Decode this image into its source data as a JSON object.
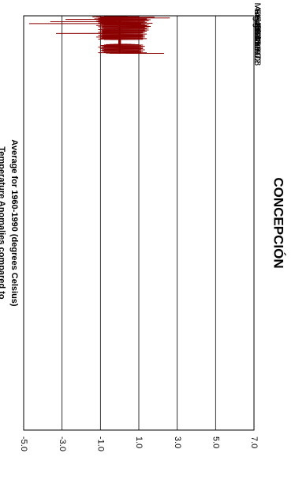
{
  "chart_data": {
    "type": "line",
    "title": "CONCEPCIÓN",
    "ylabel_line1": "Temperature Anomalies compared to",
    "ylabel_line2": "Average for 1960-1990 (degrees Celsius)",
    "ylim": [
      -5.0,
      7.0
    ],
    "y_ticks": [
      7.0,
      5.0,
      3.0,
      1.0,
      -1.0,
      -3.0,
      -5.0
    ],
    "y_tick_labels": [
      "7.0",
      "5.0",
      "3.0",
      "1.0",
      "-1.0",
      "-3.0",
      "-5.0"
    ],
    "x_tick_labels": [
      "Mar-48",
      "Aug-53",
      "Feb-59",
      "Aug-64",
      "Feb-70",
      "Jul-75",
      "Jan-81",
      "Jul-86",
      "Dec-91",
      "Jun-97",
      "Dec-02",
      "Jun-08"
    ],
    "x_range": [
      "1948-03",
      "2010-01"
    ],
    "grid": "horizontal",
    "orientation": "rotated-90-clockwise",
    "series": [
      {
        "color": "#8b0000",
        "description": "monthly temperature anomaly",
        "segments": [
          {
            "start": "1948-03",
            "end": "1986-12",
            "x_unit": "month",
            "values": [
              -0.2,
              0.4,
              -0.8,
              1.0,
              -0.5,
              0.3,
              -1.4,
              0.6,
              -0.3,
              0.9,
              -0.7,
              0.2,
              -1.2,
              0.5,
              1.8,
              -0.4,
              0.7,
              -0.9,
              0.1,
              1.3,
              -0.6,
              0.4,
              -0.2,
              0.8,
              -1.0,
              0.3,
              0.6,
              -0.5,
              1.1,
              -0.8,
              0.2,
              0.9,
              -0.3,
              2.6,
              -0.7,
              0.4,
              1.5,
              -0.2,
              0.8,
              -1.1,
              0.5,
              0.2,
              -0.6,
              1.0,
              -0.4,
              0.7,
              -0.9,
              0.3,
              1.2,
              -0.5,
              0.6,
              -0.2,
              0.9,
              -1.3,
              0.4,
              0.1,
              -0.7,
              1.4,
              -0.3,
              0.5,
              -0.8,
              0.2,
              1.0,
              -0.6,
              0.3,
              0.7,
              -0.4,
              -2.8,
              0.6,
              -0.2,
              0.9,
              -0.9,
              0.4,
              1.6,
              -0.5,
              0.2,
              -0.3,
              0.8,
              -1.0,
              0.5,
              0.1,
              -0.6,
              1.2,
              -0.2,
              0.6,
              -0.8,
              0.3,
              0.9,
              -0.4,
              0.2,
              -1.1,
              0.7,
              -0.3,
              1.5,
              -0.6,
              0.4,
              0.1,
              -0.9,
              0.8,
              -0.2,
              0.5,
              -0.7,
              1.0,
              -0.3,
              0.3,
              0.6,
              -1.2,
              0.4,
              -0.5,
              0.9,
              -0.1,
              0.7,
              -0.8,
              0.2,
              1.3,
              -0.4,
              0.5,
              -0.6,
              0.3,
              0.8,
              -3.6,
              0.6,
              -0.2,
              1.1,
              -0.7,
              0.4,
              0.2,
              -0.5,
              0.9,
              -0.3,
              0.6,
              -1.0,
              0.3,
              1.4,
              -0.4,
              0.2,
              -0.8,
              0.7,
              -0.2,
              0.5,
              1.0,
              -0.6,
              0.3,
              -0.3,
              0.8,
              -1.1,
              0.4,
              0.1,
              -0.7,
              1.2,
              -0.2,
              0.6,
              -0.5,
              0.3,
              1.7,
              -0.9,
              0.4,
              -0.3,
              0.9,
              -0.6,
              0.2,
              0.7,
              -0.4,
              -4.7,
              0.5,
              -0.8,
              0.3,
              1.1,
              -0.2,
              0.6,
              -0.7,
              0.4,
              0.2,
              -0.5,
              1.0,
              -0.3,
              0.8,
              -0.9,
              0.5,
              1.3,
              -0.4,
              0.2,
              -0.6,
              0.7,
              -0.2,
              0.9,
              -1.0,
              0.4,
              0.3,
              -0.5,
              1.2,
              -0.3,
              0.6,
              -0.8,
              0.2,
              1.5,
              -0.4,
              0.5,
              -0.2,
              0.8,
              -0.7,
              0.3,
              1.0,
              -0.5,
              0.6,
              -0.3,
              0.4,
              -1.2,
              0.9,
              -0.2,
              0.7,
              -0.6,
              0.3,
              1.4,
              -0.4,
              0.5,
              -0.8,
              0.2,
              1.1,
              -0.3,
              0.6,
              -0.5,
              0.4,
              0.9,
              -0.9,
              0.2,
              -0.4,
              0.8,
              -0.2,
              1.6,
              -0.6,
              0.3,
              -0.7,
              0.5,
              1.0,
              -0.3,
              0.4,
              -1.1,
              0.7,
              -0.2,
              0.9,
              -0.5,
              0.3,
              1.3,
              -0.6,
              0.2,
              -0.3,
              0.8,
              -0.8,
              0.5,
              1.1,
              -0.4,
              0.6,
              -0.2,
              0.4,
              -0.9,
              1.2,
              -0.3,
              0.7,
              -0.6,
              0.2,
              1.5,
              -0.5,
              0.4,
              -0.7,
              0.3,
              1.0,
              -0.2,
              0.8,
              -1.0,
              0.5,
              0.9,
              -0.4,
              0.6,
              -0.3,
              1.2,
              -0.6,
              0.2,
              0.7,
              -0.8,
              0.4,
              1.4,
              -0.3,
              0.5,
              -0.5,
              0.8,
              -0.2,
              1.1,
              -0.7,
              0.3,
              0.6,
              -0.4,
              1.3,
              -0.9,
              0.2,
              0.9,
              -0.3,
              0.5,
              -0.6,
              1.0,
              -0.2,
              0.7,
              -1.1,
              0.4,
              1.2,
              -0.5,
              0.3,
              -0.4,
              0.8,
              -0.8,
              0.6,
              1.5,
              -0.3,
              0.2,
              -0.6,
              0.9,
              -0.2,
              0.4,
              -0.9,
              1.1,
              -0.4,
              0.7,
              -0.3,
              0.5,
              1.3,
              -0.7,
              0.2,
              0.8,
              -0.5,
              0.6,
              -1.0,
              0.3,
              1.0,
              -0.2,
              0.4,
              -0.6,
              0.9,
              -0.3,
              1.4,
              -0.8,
              0.5,
              0.2,
              -0.4,
              0.7,
              -0.2,
              1.1,
              -0.9,
              0.3,
              0.6,
              -0.5,
              1.2,
              -0.3,
              0.4,
              -0.7,
              0.8,
              -0.2,
              0.5,
              1.0,
              -0.6,
              0.3,
              -0.4,
              0.9,
              -1.1,
              0.6,
              0.2,
              -0.3,
              1.3,
              -0.5,
              0.4,
              -0.8,
              0.7,
              -0.2,
              1.0,
              -0.6,
              0.3,
              0.5,
              -0.4,
              0.8,
              -0.3,
              1.2,
              -0.9,
              0.2,
              0.6,
              -0.5,
              0.4,
              -0.7,
              1.1,
              -0.2,
              0.3,
              0.9,
              -0.4,
              -3.3,
              0.5,
              -0.6,
              0.7,
              -0.3,
              1.0,
              -0.8,
              0.2,
              0.4,
              -0.5,
              0.9,
              -0.2,
              0.6,
              -1.0,
              0.3,
              1.4,
              -0.4,
              0.5,
              -0.7,
              0.8,
              -0.3,
              0.2,
              1.1,
              -0.6,
              0.4,
              -0.2,
              0.7,
              -0.9,
              0.3,
              1.0,
              -0.5,
              0.6,
              -0.4,
              0.2,
              -0.8,
              1.2,
              -0.3,
              0.5,
              -0.6,
              0.7,
              -0.2,
              0.9,
              -1.1,
              0.4,
              0.3,
              -0.5,
              0.8,
              -0.3,
              1.3,
              -0.7,
              0.2,
              0.6,
              -0.4,
              0.5,
              -0.9,
              1.0,
              -0.2,
              0.7,
              -0.6,
              0.3,
              1.1,
              -0.5,
              0.4,
              -0.8,
              0.2,
              0.9,
              -0.3,
              0.6,
              -1.0,
              0.5,
              1.2,
              -0.4,
              0.3,
              -0.7,
              0.8,
              -0.2,
              1.0,
              -0.6,
              0.4,
              0.2,
              -0.5,
              0.7,
              -1.2,
              0.3,
              1.3,
              -0.4,
              0.6,
              -0.8,
              0.5,
              -0.3,
              0.9,
              -0.2,
              0.4,
              -0.6,
              1.1,
              -0.9,
              0.3,
              0.7,
              -0.5,
              0.2,
              1.0,
              -0.4,
              0.6,
              -0.7,
              0.8,
              -0.3,
              1.2,
              -1.0,
              0.4,
              0.5,
              -0.6,
              0.9,
              -0.2,
              0.3,
              -0.8,
              1.1,
              -0.4,
              0.7,
              -0.5,
              0.2,
              1.4,
              -0.9,
              0.6,
              -0.3,
              0.8,
              -0.7,
              0.4,
              1.0,
              -0.2,
              0.5,
              -1.1,
              0.3,
              0.9,
              -0.6,
              0.7,
              -0.4,
              1.2,
              -0.3,
              0.2,
              -0.8,
              0.6,
              1.0,
              -0.5,
              0.4
            ]
          },
          {
            "start": "1986-12",
            "end": "1994-08",
            "x_unit": "month",
            "values": [
              0.0,
              -0.05,
              0.05,
              -0.05,
              0.05,
              0.0,
              -0.05,
              0.05,
              0.0,
              -0.05,
              0.05,
              0.0,
              -0.05,
              0.0,
              0.05,
              -0.05,
              0.0,
              0.05,
              -0.05,
              0.0,
              0.05,
              0.0,
              -0.05,
              0.05,
              0.0,
              -0.05,
              0.05,
              0.0,
              -0.05,
              0.0,
              0.05,
              -0.05,
              0.05,
              0.0,
              -0.05,
              0.05,
              0.0,
              -0.05,
              0.0,
              0.05,
              -0.05,
              0.0,
              0.05,
              -0.05,
              0.0,
              0.05,
              0.0,
              -0.05,
              0.05,
              0.0,
              -0.05,
              0.05,
              0.0,
              -0.05,
              0.0,
              0.05,
              -0.05,
              0.0,
              0.05,
              -0.05,
              0.0,
              0.05,
              0.0,
              -0.05,
              0.05,
              0.0,
              -0.05,
              0.05,
              0.0,
              -0.05,
              0.0,
              0.05,
              -0.05,
              0.0,
              0.05,
              -0.05,
              0.0,
              0.05,
              0.0,
              -0.05,
              0.05,
              0.0,
              -0.05,
              0.05,
              0.0,
              -0.05,
              0.0,
              0.05,
              -0.05,
              0.0,
              0.05,
              -0.05,
              0.0
            ]
          },
          {
            "start": "1994-08",
            "end": "2010-01",
            "x_unit": "month",
            "values": [
              0.4,
              -0.3,
              0.6,
              -0.5,
              0.2,
              0.8,
              -0.2,
              0.5,
              -0.7,
              0.3,
              1.0,
              -0.4,
              0.6,
              -0.2,
              0.4,
              -0.8,
              0.7,
              -0.3,
              0.5,
              1.2,
              -0.6,
              0.3,
              -0.4,
              0.9,
              -0.2,
              0.6,
              -1.0,
              0.4,
              0.2,
              -0.5,
              0.8,
              -0.3,
              0.5,
              1.1,
              -0.7,
              0.3,
              -0.2,
              0.6,
              -0.4,
              0.9,
              -0.8,
              0.2,
              0.7,
              -0.3,
              0.5,
              -0.6,
              1.3,
              -0.2,
              0.4,
              -0.9,
              0.6,
              -0.3,
              0.8,
              -0.5,
              0.2,
              1.0,
              -0.4,
              0.5,
              -0.7,
              0.3,
              0.9,
              -0.2,
              0.6,
              -1.1,
              0.4,
              -0.3,
              0.7,
              -0.5,
              1.2,
              -0.2,
              0.3,
              -0.8,
              0.6,
              -0.4,
              0.9,
              -0.3,
              0.5,
              1.0,
              -0.6,
              0.2,
              -0.5,
              0.8,
              -0.2,
              0.4,
              -0.9,
              1.1,
              -0.3,
              0.6,
              -0.4,
              0.7,
              -0.2,
              0.5,
              -1.0,
              0.3,
              1.2,
              -0.5,
              0.4,
              -0.7,
              0.6,
              -0.3,
              0.9,
              -0.2,
              0.4,
              -0.6,
              1.0,
              -0.4,
              0.7,
              -0.8,
              0.3,
              0.5,
              -0.3,
              1.1,
              -0.5,
              0.2,
              -0.9,
              0.6,
              -0.2,
              0.8,
              -0.4,
              0.3,
              1.3,
              -0.6,
              0.5,
              -0.3,
              0.7,
              -0.7,
              0.4,
              0.9,
              -0.2,
              0.6,
              -0.5,
              0.3,
              -1.0,
              1.0,
              -0.3,
              0.5,
              -0.4,
              0.8,
              -0.2,
              0.6,
              -0.8,
              0.4,
              1.1,
              -0.5,
              0.3,
              -0.6,
              0.7,
              -0.3,
              0.9,
              -0.2,
              0.5,
              -0.9,
              0.6,
              0.2,
              -0.4,
              1.2,
              -0.3,
              0.4,
              -0.7,
              0.8,
              -0.2,
              0.5,
              -0.5,
              1.0,
              -0.4,
              0.3,
              -0.8,
              0.6,
              -0.2,
              0.9,
              -0.6,
              0.4,
              0.7,
              -0.3,
              1.1,
              -0.5,
              0.2,
              -0.4,
              0.8,
              -0.3,
              0.6,
              -1.1,
              0.5,
              1.4,
              -0.2,
              0.3,
              -0.6,
              0.7,
              -0.4,
              0.9,
              -0.7,
              0.4,
              0.5,
              -0.3,
              2.3,
              -0.5,
              0.6
            ]
          }
        ]
      },
      {
        "color": "#000000",
        "description": "zero baseline",
        "constant": 0.0
      }
    ]
  }
}
